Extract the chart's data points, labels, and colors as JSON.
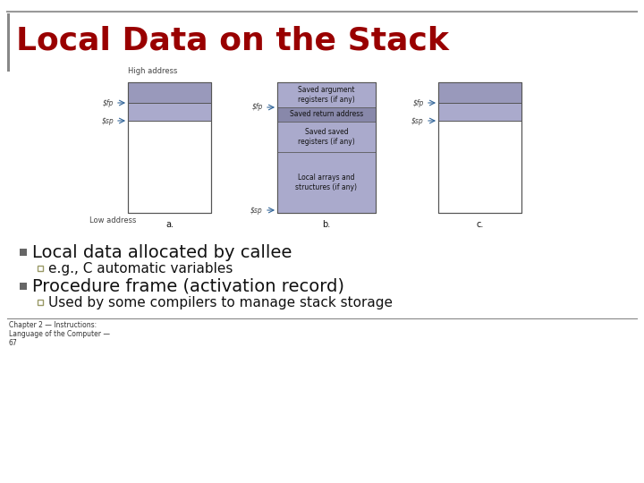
{
  "title": "Local Data on the Stack",
  "title_color": "#990000",
  "title_fontsize": 26,
  "bg_color": "#ffffff",
  "bullet1": "Local data allocated by callee",
  "sub1": "e.g., C automatic variables",
  "bullet2": "Procedure frame (activation record)",
  "sub2": "Used by some compilers to manage stack storage",
  "footer_line1": "Chapter 2 — Instructions:",
  "footer_line2": "Language of the Computer —",
  "footer_line3": "67",
  "diagram_fill_blue": "#9999bb",
  "diagram_fill_light": "#aaaacc",
  "box_fill_dark": "#8888aa",
  "text_dark": "#111111",
  "border_color": "#555555",
  "arrow_color": "#336699",
  "label_color": "#444444",
  "top_bar_color": "#999999",
  "left_bar_color": "#888888",
  "bullet_color": "#666666",
  "sub_bullet_fill": "#ffffff",
  "sub_bullet_border": "#999966"
}
